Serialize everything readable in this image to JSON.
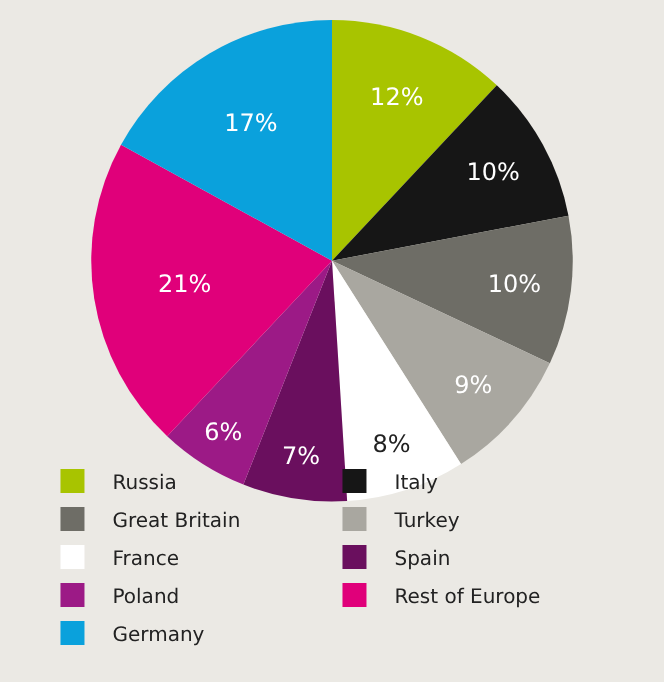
{
  "chart_data": {
    "type": "pie",
    "categories": [
      "Russia",
      "Italy",
      "Great Britain",
      "Turkey",
      "France",
      "Spain",
      "Poland",
      "Rest of Europe",
      "Germany"
    ],
    "values": [
      12,
      10,
      10,
      9,
      8,
      7,
      6,
      21,
      17
    ],
    "value_labels": [
      "12%",
      "10%",
      "10%",
      "9%",
      "8%",
      "7%",
      "6%",
      "21%",
      "17%"
    ],
    "colors": [
      "#a8c400",
      "#161616",
      "#6e6d66",
      "#a9a7a0",
      "#ffffff",
      "#6a0f5e",
      "#9c1a86",
      "#e0007a",
      "#0aa1dc"
    ],
    "legend": "bottom"
  }
}
